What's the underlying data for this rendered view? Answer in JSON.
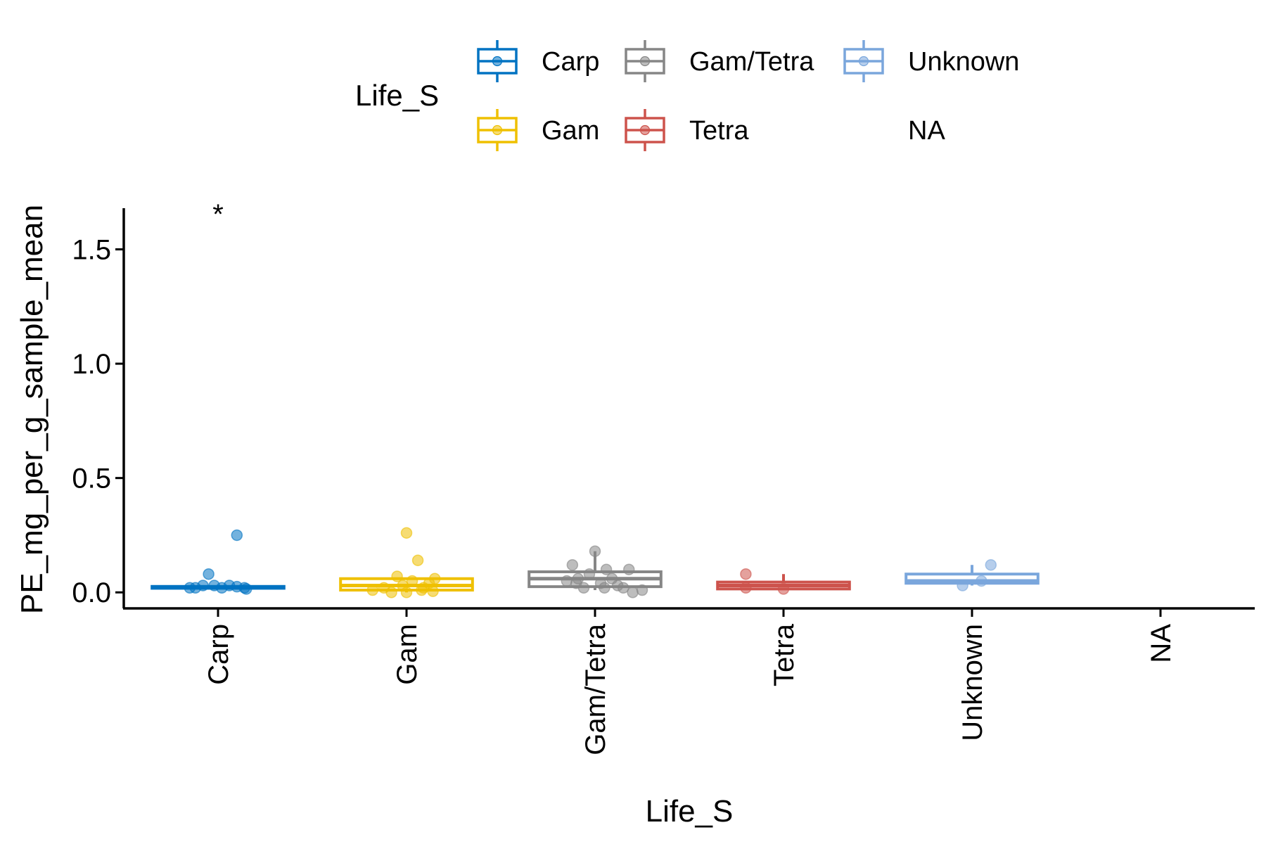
{
  "chart_data": {
    "type": "boxplot",
    "xlabel": "Life_S",
    "ylabel": "PE_mg_per_g_sample_mean",
    "ylim": [
      -0.07,
      1.68
    ],
    "yticks": [
      0.0,
      0.5,
      1.0,
      1.5
    ],
    "ytick_labels": [
      "0.0",
      "0.5",
      "1.0",
      "1.5"
    ],
    "categories": [
      "Carp",
      "Gam",
      "Gam/Tetra",
      "Tetra",
      "Unknown",
      "NA"
    ],
    "legend": {
      "title": "Life_S",
      "position": "top",
      "entries": [
        "Carp",
        "Gam",
        "Gam/Tetra",
        "Tetra",
        "Unknown",
        "NA"
      ]
    },
    "annotation": {
      "text": "*",
      "category": "Carp",
      "y": 1.68
    },
    "grid": false,
    "series": [
      {
        "name": "Carp",
        "color": "#0073C2",
        "q1": 0.018,
        "median": 0.022,
        "q3": 0.026,
        "whisker_low": 0.015,
        "whisker_high": 0.03,
        "points": [
          [
            -0.15,
            0.02
          ],
          [
            -0.12,
            0.02
          ],
          [
            -0.08,
            0.03
          ],
          [
            -0.05,
            0.08
          ],
          [
            -0.02,
            0.03
          ],
          [
            0.02,
            0.02
          ],
          [
            0.06,
            0.03
          ],
          [
            0.1,
            0.025
          ],
          [
            0.14,
            0.02
          ],
          [
            0.1,
            0.25
          ],
          [
            0.15,
            0.015
          ]
        ]
      },
      {
        "name": "Gam",
        "color": "#EFC000",
        "q1": 0.01,
        "median": 0.03,
        "q3": 0.06,
        "whisker_low": 0.0,
        "whisker_high": 0.06,
        "points": [
          [
            -0.18,
            0.01
          ],
          [
            -0.12,
            0.02
          ],
          [
            -0.08,
            0.0
          ],
          [
            -0.05,
            0.07
          ],
          [
            -0.02,
            0.03
          ],
          [
            0.0,
            0.26
          ],
          [
            0.03,
            0.05
          ],
          [
            0.06,
            0.14
          ],
          [
            0.09,
            0.02
          ],
          [
            0.12,
            0.04
          ],
          [
            0.15,
            0.06
          ],
          [
            0.0,
            0.0
          ],
          [
            0.08,
            0.01
          ],
          [
            0.14,
            0.005
          ]
        ]
      },
      {
        "name": "Gam/Tetra",
        "color": "#868686",
        "q1": 0.025,
        "median": 0.06,
        "q3": 0.09,
        "whisker_low": 0.01,
        "whisker_high": 0.18,
        "points": [
          [
            -0.15,
            0.05
          ],
          [
            -0.12,
            0.12
          ],
          [
            -0.09,
            0.06
          ],
          [
            -0.06,
            0.02
          ],
          [
            -0.03,
            0.08
          ],
          [
            0.0,
            0.18
          ],
          [
            0.03,
            0.04
          ],
          [
            0.06,
            0.1
          ],
          [
            0.09,
            0.06
          ],
          [
            0.12,
            0.03
          ],
          [
            -0.1,
            0.04
          ],
          [
            0.15,
            0.02
          ],
          [
            0.2,
            0.0
          ],
          [
            0.25,
            0.01
          ],
          [
            0.18,
            0.1
          ],
          [
            0.05,
            0.02
          ]
        ]
      },
      {
        "name": "Tetra",
        "color": "#CD534C",
        "q1": 0.015,
        "median": 0.03,
        "q3": 0.045,
        "whisker_low": 0.01,
        "whisker_high": 0.08,
        "points": [
          [
            -0.2,
            0.08
          ],
          [
            -0.2,
            0.02
          ],
          [
            0.0,
            0.015
          ]
        ]
      },
      {
        "name": "Unknown",
        "color": "#7AA6DC",
        "q1": 0.04,
        "median": 0.05,
        "q3": 0.08,
        "whisker_low": 0.03,
        "whisker_high": 0.12,
        "points": [
          [
            0.1,
            0.12
          ],
          [
            0.05,
            0.05
          ],
          [
            -0.05,
            0.03
          ]
        ]
      },
      {
        "name": "NA",
        "color": "#ffffff",
        "q1": null,
        "median": null,
        "q3": null,
        "whisker_low": null,
        "whisker_high": null,
        "points": []
      }
    ]
  }
}
